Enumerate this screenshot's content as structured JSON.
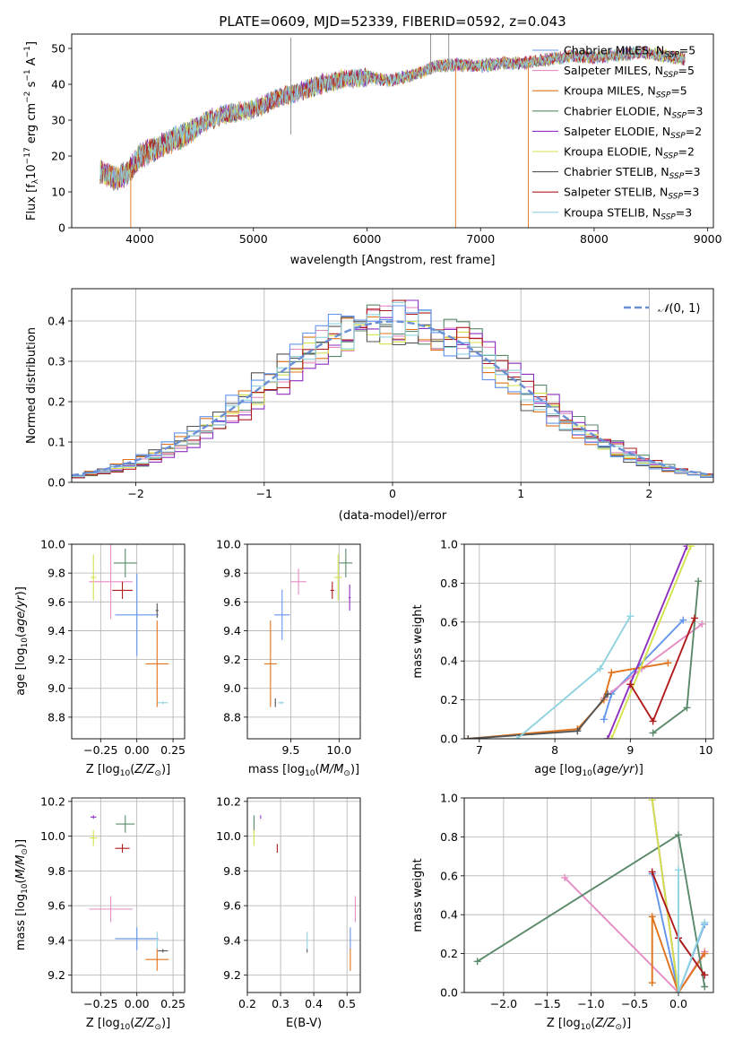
{
  "figure": {
    "title": "PLATE=0609, MJD=52339, FIBERID=0592, z=0.043"
  },
  "colors": {
    "grid": "#b0b0b0",
    "gaussian": "#6a8fd6",
    "series": [
      "#6495ed",
      "#e58cc4",
      "#e0731b",
      "#5a8a6a",
      "#8e2fc0",
      "#d4e24a",
      "#555555",
      "#b01c1c",
      "#8fd3e0"
    ]
  },
  "chart_data": [
    {
      "id": "spectrum",
      "type": "line",
      "xlabel": "wavelength [Angstrom, rest frame]",
      "ylabel": "Flux [f_λ 10^-17 erg cm^-2 s^-1 A^-1]",
      "xlim": [
        3400,
        9050
      ],
      "ylim": [
        0,
        54
      ],
      "xticks": [
        4000,
        5000,
        6000,
        7000,
        8000,
        9000
      ],
      "yticks": [
        0,
        10,
        20,
        30,
        40,
        50
      ],
      "continuum": [
        [
          3650,
          16
        ],
        [
          3800,
          13.5
        ],
        [
          3900,
          15.5
        ],
        [
          4000,
          20
        ],
        [
          4200,
          23
        ],
        [
          4400,
          26
        ],
        [
          4600,
          30
        ],
        [
          4800,
          32
        ],
        [
          5000,
          33
        ],
        [
          5200,
          36
        ],
        [
          5400,
          38
        ],
        [
          5600,
          40
        ],
        [
          5800,
          41.5
        ],
        [
          6000,
          42
        ],
        [
          6200,
          41
        ],
        [
          6400,
          42.5
        ],
        [
          6600,
          45
        ],
        [
          6800,
          45.5
        ],
        [
          7000,
          45
        ],
        [
          7200,
          46
        ],
        [
          7400,
          46
        ],
        [
          7600,
          47
        ],
        [
          7800,
          48
        ],
        [
          8000,
          47.5
        ],
        [
          8200,
          48
        ],
        [
          8400,
          49
        ],
        [
          8600,
          48
        ],
        [
          8800,
          47
        ]
      ],
      "data_range": [
        3650,
        8800
      ],
      "legend": [
        {
          "label": "Chabrier MILES, N_SSP=5",
          "color_index": 0
        },
        {
          "label": "Salpeter MILES, N_SSP=5",
          "color_index": 1
        },
        {
          "label": "Kroupa MILES, N_SSP=5",
          "color_index": 2
        },
        {
          "label": "Chabrier ELODIE, N_SSP=3",
          "color_index": 3
        },
        {
          "label": "Salpeter ELODIE, N_SSP=2",
          "color_index": 4
        },
        {
          "label": "Kroupa ELODIE, N_SSP=2",
          "color_index": 5
        },
        {
          "label": "Chabrier STELIB, N_SSP=3",
          "color_index": 6
        },
        {
          "label": "Salpeter STELIB, N_SSP=3",
          "color_index": 7
        },
        {
          "label": "Kroupa STELIB, N_SSP=3",
          "color_index": 8
        }
      ],
      "spikes": [
        [
          5330,
          53,
          26
        ],
        [
          6560,
          54,
          44
        ],
        [
          6720,
          54,
          45
        ],
        [
          3920,
          0,
          16
        ],
        [
          6780,
          0,
          45
        ],
        [
          7420,
          0,
          46
        ]
      ]
    },
    {
      "id": "residuals",
      "type": "histogram",
      "xlabel": "(data-model)/error",
      "ylabel": "Normed distribution",
      "xlim": [
        -2.5,
        2.5
      ],
      "ylim": [
        0,
        0.48
      ],
      "xticks": [
        -2,
        -1,
        0,
        1,
        2
      ],
      "yticks": [
        0.0,
        0.1,
        0.2,
        0.3,
        0.4
      ],
      "bin_edges": [
        -2.5,
        2.5,
        50
      ],
      "gaussian_label": "N(0,1)"
    },
    {
      "id": "age_vs_Z",
      "type": "scatter",
      "xlabel": "Z [log10(Z/Z_sun)]",
      "ylabel": "age  [log10(age/yr)]",
      "xlim": [
        -0.45,
        0.33
      ],
      "ylim": [
        8.65,
        10.0
      ],
      "xticks": [
        -0.25,
        0.0,
        0.25
      ],
      "yticks": [
        8.8,
        9.0,
        9.2,
        9.4,
        9.6,
        9.8,
        10.0
      ],
      "points": [
        {
          "x": 0.0,
          "y": 9.51,
          "xe": 0.3,
          "ye": 0.57,
          "c": 0
        },
        {
          "x": -0.18,
          "y": 9.74,
          "xe": 0.3,
          "ye": 0.52,
          "c": 1
        },
        {
          "x": 0.14,
          "y": 9.17,
          "xe": 0.16,
          "ye": 0.6,
          "c": 2
        },
        {
          "x": -0.08,
          "y": 9.87,
          "xe": 0.16,
          "ye": 0.2,
          "c": 3
        },
        {
          "x": -0.3,
          "y": 9.77,
          "xe": 0.04,
          "ye": 0.32,
          "c": 5
        },
        {
          "x": 0.14,
          "y": 9.54,
          "xe": 0.02,
          "ye": 0.1,
          "c": 6
        },
        {
          "x": -0.1,
          "y": 9.68,
          "xe": 0.14,
          "ye": 0.12,
          "c": 7
        },
        {
          "x": 0.18,
          "y": 8.9,
          "xe": 0.07,
          "ye": 0.02,
          "c": 8
        }
      ]
    },
    {
      "id": "age_vs_mass",
      "type": "scatter",
      "xlabel": "mass [log10(M/M_sun)]",
      "ylabel": "",
      "xlim": [
        9.05,
        10.22
      ],
      "ylim": [
        8.65,
        10.0
      ],
      "xticks": [
        9.5,
        10.0
      ],
      "yticks": [
        8.8,
        9.0,
        9.2,
        9.4,
        9.6,
        9.8,
        10.0
      ],
      "points": [
        {
          "x": 9.41,
          "y": 9.51,
          "xe": 0.16,
          "ye": 0.35,
          "c": 0
        },
        {
          "x": 9.58,
          "y": 9.74,
          "xe": 0.16,
          "ye": 0.18,
          "c": 1
        },
        {
          "x": 9.29,
          "y": 9.17,
          "xe": 0.13,
          "ye": 0.6,
          "c": 2
        },
        {
          "x": 10.07,
          "y": 9.87,
          "xe": 0.14,
          "ye": 0.2,
          "c": 3
        },
        {
          "x": 10.11,
          "y": 9.63,
          "xe": 0.02,
          "ye": 0.18,
          "c": 4
        },
        {
          "x": 9.99,
          "y": 9.77,
          "xe": 0.08,
          "ye": 0.32,
          "c": 5
        },
        {
          "x": 9.34,
          "y": 8.9,
          "xe": 0.01,
          "ye": 0.06,
          "c": 6
        },
        {
          "x": 9.93,
          "y": 9.68,
          "xe": 0.04,
          "ye": 0.12,
          "c": 7
        },
        {
          "x": 9.4,
          "y": 8.9,
          "xe": 0.06,
          "ye": 0.02,
          "c": 8
        }
      ]
    },
    {
      "id": "mass_weight_vs_age",
      "type": "line",
      "xlabel": "age  [log10(age/yr)]",
      "ylabel": "mass weight",
      "xlim": [
        6.8,
        10.1
      ],
      "ylim": [
        0,
        1.0
      ],
      "xticks": [
        7,
        8,
        9,
        10
      ],
      "yticks": [
        0.0,
        0.2,
        0.4,
        0.6,
        0.8,
        1.0
      ],
      "series": [
        {
          "c": 0,
          "x": [
            8.65,
            8.75,
            9.7
          ],
          "y": [
            0.1,
            0.23,
            0.61
          ]
        },
        {
          "c": 1,
          "x": [
            8.65,
            9.15,
            9.95
          ],
          "y": [
            0.21,
            0.36,
            0.59
          ]
        },
        {
          "c": 2,
          "x": [
            6.85,
            8.3,
            8.65,
            8.75,
            9.5
          ],
          "y": [
            0.0,
            0.05,
            0.2,
            0.34,
            0.39
          ]
        },
        {
          "c": 3,
          "x": [
            9.3,
            9.75,
            9.9
          ],
          "y": [
            0.03,
            0.16,
            0.81
          ]
        },
        {
          "c": 4,
          "x": [
            8.7,
            9.75
          ],
          "y": [
            0.0,
            0.99
          ]
        },
        {
          "c": 5,
          "x": [
            8.75,
            9.8
          ],
          "y": [
            0.0,
            0.99
          ]
        },
        {
          "c": 6,
          "x": [
            6.85,
            8.3,
            8.7
          ],
          "y": [
            0.0,
            0.04,
            0.23
          ]
        },
        {
          "c": 7,
          "x": [
            9.0,
            9.3,
            9.85
          ],
          "y": [
            0.28,
            0.09,
            0.62
          ]
        },
        {
          "c": 8,
          "x": [
            7.5,
            8.6,
            9.0
          ],
          "y": [
            0.0,
            0.36,
            0.63
          ]
        }
      ]
    },
    {
      "id": "mass_vs_Z",
      "type": "scatter",
      "xlabel": "Z [log10(Z/Z_sun)]",
      "ylabel": "mass [log10(M/M_sun)]",
      "xlim": [
        -0.45,
        0.33
      ],
      "ylim": [
        9.1,
        10.22
      ],
      "xticks": [
        -0.25,
        0.0,
        0.25
      ],
      "yticks": [
        9.2,
        9.4,
        9.6,
        9.8,
        10.0,
        10.2
      ],
      "points": [
        {
          "x": 0.0,
          "y": 9.41,
          "xe": 0.3,
          "ye": 0.13,
          "c": 0
        },
        {
          "x": -0.18,
          "y": 9.58,
          "xe": 0.3,
          "ye": 0.15,
          "c": 1
        },
        {
          "x": 0.14,
          "y": 9.29,
          "xe": 0.16,
          "ye": 0.13,
          "c": 2
        },
        {
          "x": -0.08,
          "y": 10.07,
          "xe": 0.13,
          "ye": 0.1,
          "c": 3
        },
        {
          "x": -0.3,
          "y": 10.11,
          "xe": 0.04,
          "ye": 0.02,
          "c": 4
        },
        {
          "x": -0.3,
          "y": 9.99,
          "xe": 0.05,
          "ye": 0.09,
          "c": 5
        },
        {
          "x": 0.18,
          "y": 9.34,
          "xe": 0.07,
          "ye": 0.02,
          "c": 6
        },
        {
          "x": -0.1,
          "y": 9.93,
          "xe": 0.1,
          "ye": 0.05,
          "c": 7
        },
        {
          "x": 0.14,
          "y": 9.4,
          "xe": 0.01,
          "ye": 0.1,
          "c": 8
        }
      ]
    },
    {
      "id": "mass_vs_ebv",
      "type": "scatter",
      "xlabel": "E(B-V)",
      "ylabel": "",
      "xlim": [
        0.2,
        0.54
      ],
      "ylim": [
        9.1,
        10.22
      ],
      "xticks": [
        0.2,
        0.3,
        0.4,
        0.5
      ],
      "yticks": [
        9.2,
        9.4,
        9.6,
        9.8,
        10.0,
        10.2
      ],
      "points": [
        {
          "x": 0.51,
          "y": 9.41,
          "xe": 0.0,
          "ye": 0.13,
          "c": 0
        },
        {
          "x": 0.525,
          "y": 9.58,
          "xe": 0.0,
          "ye": 0.15,
          "c": 1
        },
        {
          "x": 0.51,
          "y": 9.29,
          "xe": 0.0,
          "ye": 0.13,
          "c": 2
        },
        {
          "x": 0.22,
          "y": 10.07,
          "xe": 0.0,
          "ye": 0.1,
          "c": 3
        },
        {
          "x": 0.24,
          "y": 10.11,
          "xe": 0.0,
          "ye": 0.02,
          "c": 4
        },
        {
          "x": 0.22,
          "y": 9.99,
          "xe": 0.0,
          "ye": 0.09,
          "c": 5
        },
        {
          "x": 0.38,
          "y": 9.34,
          "xe": 0.0,
          "ye": 0.02,
          "c": 6
        },
        {
          "x": 0.29,
          "y": 9.93,
          "xe": 0.0,
          "ye": 0.05,
          "c": 7
        },
        {
          "x": 0.38,
          "y": 9.4,
          "xe": 0.0,
          "ye": 0.1,
          "c": 8
        }
      ]
    },
    {
      "id": "mass_weight_vs_Z",
      "type": "line",
      "xlabel": "Z [log10(Z/Z_sun)]",
      "ylabel": "mass weight",
      "xlim": [
        -2.45,
        0.4
      ],
      "ylim": [
        0,
        1.0
      ],
      "xticks": [
        -2.0,
        -1.5,
        -1.0,
        -0.5,
        0.0
      ],
      "yticks": [
        0.0,
        0.2,
        0.4,
        0.6,
        0.8,
        1.0
      ],
      "series": [
        {
          "c": 0,
          "x": [
            -0.3,
            0.0,
            0.3
          ],
          "y": [
            0.61,
            0.0,
            0.35
          ]
        },
        {
          "c": 1,
          "x": [
            -1.3,
            0.0,
            0.3
          ],
          "y": [
            0.59,
            0.0,
            0.21
          ]
        },
        {
          "c": 2,
          "x": [
            -0.3,
            -0.3,
            0.0,
            0.3
          ],
          "y": [
            0.05,
            0.39,
            0.0,
            0.2
          ]
        },
        {
          "c": 3,
          "x": [
            -2.3,
            0.0,
            0.3
          ],
          "y": [
            0.16,
            0.81,
            0.03
          ]
        },
        {
          "c": 4,
          "x": [
            -0.3,
            0.0
          ],
          "y": [
            0.99,
            0.0
          ]
        },
        {
          "c": 5,
          "x": [
            -0.3,
            0.0
          ],
          "y": [
            0.99,
            0.0
          ]
        },
        {
          "c": 6,
          "x": [
            0.0,
            0.3,
            0.0
          ],
          "y": [
            0.28,
            0.09,
            0.28
          ]
        },
        {
          "c": 7,
          "x": [
            -0.3,
            0.0,
            0.3
          ],
          "y": [
            0.62,
            0.28,
            0.09
          ]
        },
        {
          "c": 8,
          "x": [
            0.0,
            0.0,
            0.3
          ],
          "y": [
            0.63,
            0.0,
            0.36
          ]
        }
      ]
    }
  ]
}
